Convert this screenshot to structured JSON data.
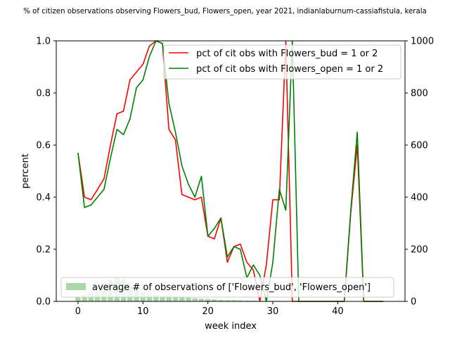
{
  "chart_data": {
    "type": "line",
    "title": "% of citizen observations observing Flowers_bud, Flowers_open, year 2021, indianlaburnum-cassiafistula, kerala",
    "xlabel": "week index",
    "ylabel": "percent",
    "xlim": [
      -3.35,
      50.35
    ],
    "ylim": [
      0,
      1.0
    ],
    "y2lim": [
      0,
      1000
    ],
    "xticks": [
      0,
      10,
      20,
      30,
      40
    ],
    "yticks": [
      0.0,
      0.2,
      0.4,
      0.6,
      0.8,
      1.0
    ],
    "y2ticks": [
      0,
      200,
      400,
      600,
      800,
      1000
    ],
    "grid": false,
    "series": [
      {
        "name": "pct of cit obs with Flowers_bud = 1 or 2",
        "color": "#ff0000",
        "axis": "left",
        "x": [
          0,
          1,
          2,
          3,
          4,
          5,
          6,
          7,
          8,
          9,
          10,
          11,
          12,
          13,
          14,
          15,
          16,
          17,
          18,
          19,
          20,
          21,
          22,
          23,
          24,
          25,
          26,
          27,
          28,
          29,
          30,
          31,
          32,
          33,
          34,
          35,
          36,
          37,
          38,
          39,
          40,
          41,
          42,
          43,
          44,
          45,
          46,
          47
        ],
        "values": [
          0.57,
          0.4,
          0.39,
          0.43,
          0.47,
          0.6,
          0.72,
          0.73,
          0.85,
          0.88,
          0.91,
          0.98,
          1.0,
          0.99,
          0.66,
          0.62,
          0.41,
          0.4,
          0.39,
          0.4,
          0.25,
          0.24,
          0.32,
          0.15,
          0.21,
          0.22,
          0.15,
          0.12,
          0.0,
          0.14,
          0.39,
          0.39,
          1.0,
          0.0,
          0.0,
          0.0,
          0.0,
          0.0,
          0.0,
          0.0,
          0.0,
          0.0,
          0.34,
          0.6,
          0.0,
          0.0,
          0.0,
          0.0
        ]
      },
      {
        "name": "pct of cit obs with Flowers_open = 1 or 2",
        "color": "#008000",
        "axis": "left",
        "x": [
          0,
          1,
          2,
          3,
          4,
          5,
          6,
          7,
          8,
          9,
          10,
          11,
          12,
          13,
          14,
          15,
          16,
          17,
          18,
          19,
          20,
          21,
          22,
          23,
          24,
          25,
          26,
          27,
          28,
          29,
          30,
          31,
          32,
          33,
          34,
          35,
          36,
          37,
          38,
          39,
          40,
          41,
          42,
          43,
          44,
          45,
          46,
          47
        ],
        "values": [
          0.57,
          0.36,
          0.37,
          0.4,
          0.43,
          0.55,
          0.66,
          0.64,
          0.7,
          0.82,
          0.85,
          0.94,
          1.0,
          0.99,
          0.76,
          0.65,
          0.52,
          0.45,
          0.4,
          0.48,
          0.25,
          0.28,
          0.32,
          0.17,
          0.21,
          0.2,
          0.09,
          0.14,
          0.1,
          0.0,
          0.15,
          0.43,
          0.35,
          1.0,
          0.0,
          0.0,
          0.0,
          0.0,
          0.0,
          0.0,
          0.0,
          0.0,
          0.35,
          0.65,
          0.0,
          0.0,
          0.0,
          0.0
        ]
      },
      {
        "name": "average # of observations of ['Flowers_bud', 'Flowers_open']",
        "type": "bar",
        "color": "#a9d7a9",
        "axis": "right",
        "x": [
          0,
          1,
          2,
          3,
          4,
          5,
          6,
          7,
          8,
          9,
          10,
          11,
          12,
          13,
          14,
          15,
          16,
          17,
          18,
          19,
          20,
          21,
          22,
          23,
          24,
          25,
          26,
          27,
          28,
          29,
          30,
          31,
          32,
          33,
          34,
          35,
          36,
          37,
          38,
          39,
          40,
          41,
          42,
          43,
          44,
          45,
          46,
          47
        ],
        "values": [
          20,
          25,
          30,
          40,
          70,
          85,
          90,
          85,
          60,
          45,
          35,
          30,
          25,
          22,
          20,
          18,
          15,
          14,
          12,
          10,
          9,
          8,
          6,
          5,
          5,
          4,
          3,
          3,
          2,
          2,
          2,
          2,
          1,
          1,
          0,
          0,
          0,
          0,
          0,
          0,
          0,
          0,
          1,
          1,
          0,
          0,
          0,
          0
        ]
      }
    ],
    "legend_upper": "top-right",
    "legend_lower": "lower-left"
  }
}
